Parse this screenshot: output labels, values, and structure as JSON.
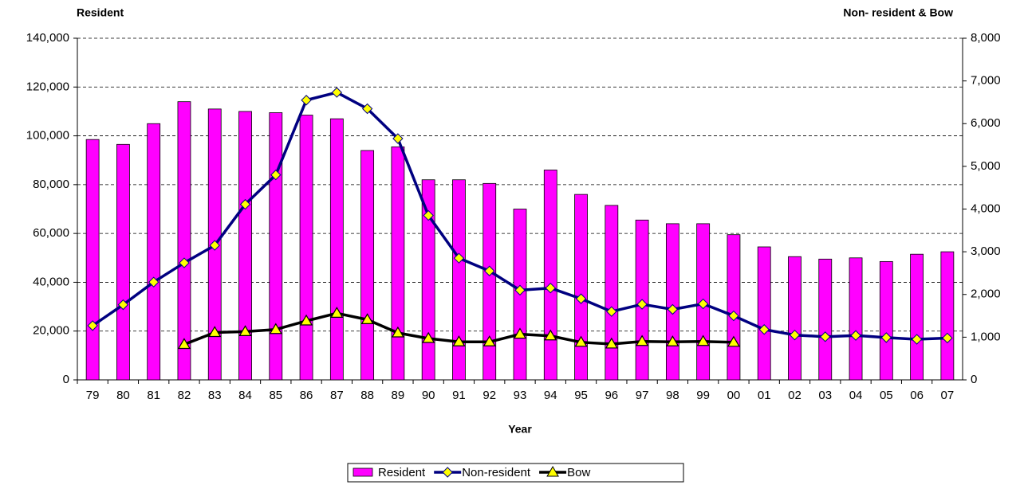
{
  "chart_data": {
    "type": "bar",
    "y_title": "Resident",
    "y2_title": "Non- resident & Bow",
    "x_title": "Year",
    "categories": [
      "79",
      "80",
      "81",
      "82",
      "83",
      "84",
      "85",
      "86",
      "87",
      "88",
      "89",
      "90",
      "91",
      "92",
      "93",
      "94",
      "95",
      "96",
      "97",
      "98",
      "99",
      "00",
      "01",
      "02",
      "03",
      "04",
      "05",
      "06",
      "07"
    ],
    "ylim": [
      0,
      140000
    ],
    "yticks": [
      0,
      {
        "value": 20000,
        "label": "20,000"
      },
      {
        "value": 40000,
        "label": "40,000"
      },
      {
        "value": 60000,
        "label": "60,000"
      },
      {
        "value": 80000,
        "label": "80,000"
      },
      {
        "value": 100000,
        "label": "100,000"
      },
      {
        "value": 120000,
        "label": "120,000"
      },
      {
        "value": 140000,
        "label": "140,000"
      }
    ],
    "y2lim": [
      0,
      8000
    ],
    "y2ticks": [
      0,
      {
        "value": 1000,
        "label": "1,000"
      },
      {
        "value": 2000,
        "label": "2,000"
      },
      {
        "value": 3000,
        "label": "3,000"
      },
      {
        "value": 4000,
        "label": "4,000"
      },
      {
        "value": 5000,
        "label": "5,000"
      },
      {
        "value": 6000,
        "label": "6,000"
      },
      {
        "value": 7000,
        "label": "7,000"
      },
      {
        "value": 8000,
        "label": "8,000"
      }
    ],
    "grid": true,
    "legend": "bottom",
    "series": [
      {
        "name": "Resident",
        "type": "bar",
        "color": "#ff00ff",
        "values": [
          98500,
          96500,
          105000,
          114000,
          111000,
          110000,
          109500,
          108500,
          107000,
          94000,
          95500,
          82000,
          82000,
          80500,
          70000,
          86000,
          76000,
          71500,
          65500,
          64000,
          64000,
          59500,
          54500,
          50500,
          49500,
          50000,
          48500,
          51500,
          52500
        ]
      },
      {
        "name": "Non-resident",
        "type": "line",
        "axis": "y2",
        "color": "#000080",
        "marker": "diamond",
        "marker_color": "#ffff00",
        "values": [
          1270,
          1760,
          2290,
          2740,
          3150,
          4110,
          4800,
          6550,
          6730,
          6350,
          5650,
          3850,
          2850,
          2550,
          2100,
          2150,
          1900,
          1600,
          1770,
          1650,
          1780,
          1500,
          1180,
          1050,
          1010,
          1040,
          990,
          950,
          980
        ]
      },
      {
        "name": "Bow",
        "type": "line",
        "axis": "y2",
        "color": "#000000",
        "marker": "triangle",
        "marker_color": "#ffff00",
        "values": [
          null,
          null,
          null,
          830,
          1110,
          1130,
          1180,
          1380,
          1560,
          1410,
          1100,
          970,
          890,
          890,
          1070,
          1030,
          880,
          840,
          900,
          890,
          900,
          880,
          null,
          null,
          null,
          null,
          null,
          null,
          null
        ]
      }
    ]
  }
}
